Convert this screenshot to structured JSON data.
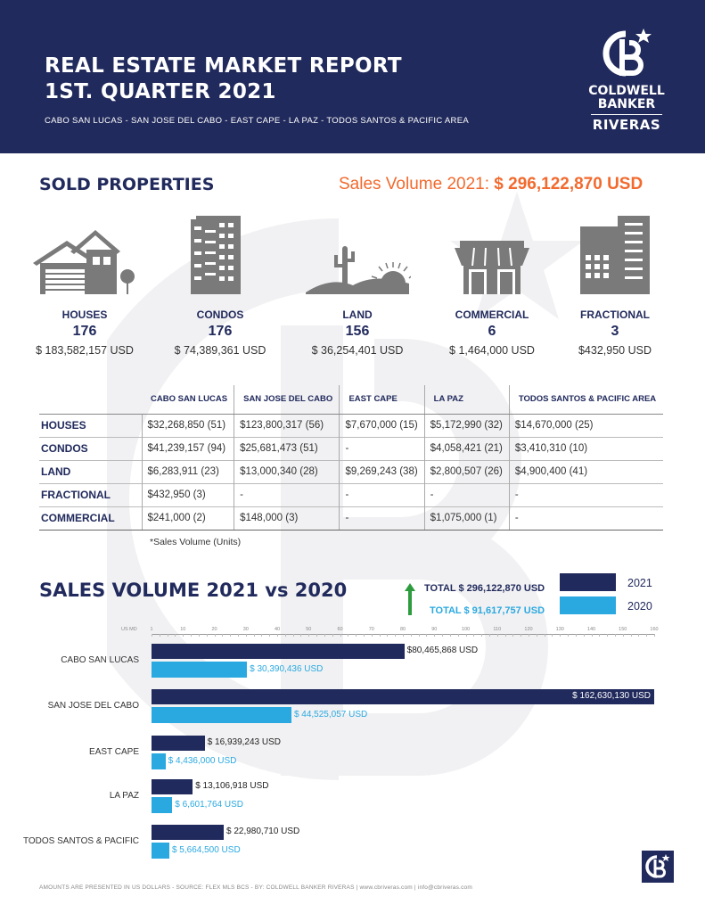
{
  "header": {
    "title_line1": "REAL ESTATE MARKET REPORT",
    "title_line2": "1ST. QUARTER 2021",
    "subtitle": "CABO SAN LUCAS - SAN JOSE DEL CABO - EAST CAPE - LA PAZ - TODOS SANTOS & PACIFIC AREA"
  },
  "logo": {
    "line1": "COLDWELL",
    "line2": "BANKER",
    "line3": "RIVERAS"
  },
  "sold": {
    "title": "SOLD PROPERTIES",
    "sales_volume_label": "Sales Volume 2021: ",
    "sales_volume_value": "$ 296,122,870 USD",
    "categories": [
      {
        "name": "HOUSES",
        "count": "176",
        "amount": "$ 183,582,157 USD",
        "icon": "house-icon"
      },
      {
        "name": "CONDOS",
        "count": "176",
        "amount": "$ 74,389,361  USD",
        "icon": "condo-building-icon"
      },
      {
        "name": "LAND",
        "count": "156",
        "amount": "$ 36,254,401 USD",
        "icon": "desert-land-icon"
      },
      {
        "name": "COMMERCIAL",
        "count": "6",
        "amount": "$ 1,464,000 USD",
        "icon": "storefront-icon"
      },
      {
        "name": "FRACTIONAL",
        "count": "3",
        "amount": "$432,950 USD",
        "icon": "tower-building-icon"
      }
    ]
  },
  "table": {
    "headers": [
      "CABO SAN LUCAS",
      "SAN JOSE DEL CABO",
      "EAST CAPE",
      "LA PAZ",
      "TODOS SANTOS & PACIFIC AREA"
    ],
    "rows": [
      {
        "label": "HOUSES",
        "cells": [
          "$32,268,850 (51)",
          "$123,800,317 (56)",
          "$7,670,000 (15)",
          "$5,172,990 (32)",
          "$14,670,000 (25)"
        ]
      },
      {
        "label": "CONDOS",
        "cells": [
          "$41,239,157 (94)",
          "$25,681,473 (51)",
          "-",
          "$4,058,421 (21)",
          "$3,410,310 (10)"
        ]
      },
      {
        "label": "LAND",
        "cells": [
          "$6,283,911 (23)",
          "$13,000,340 (28)",
          "$9,269,243 (38)",
          "$2,800,507 (26)",
          "$4,900,400 (41)"
        ]
      },
      {
        "label": "FRACTIONAL",
        "cells": [
          "$432,950 (3)",
          "-",
          "-",
          "-",
          "-"
        ]
      },
      {
        "label": "COMMERCIAL",
        "cells": [
          "$241,000 (2)",
          "$148,000 (3)",
          "-",
          "$1,075,000 (1)",
          "-"
        ]
      }
    ],
    "note": "*Sales Volume (Units)"
  },
  "comparison": {
    "title": "SALES VOLUME 2021 vs 2020",
    "total_2021": "TOTAL $ 296,122,870 USD",
    "total_2020": "TOTAL $ 91,617,757 USD",
    "legend_2021": "2021",
    "legend_2020": "2020",
    "color_2021": "#212a5c",
    "color_2020": "#2aa9e0"
  },
  "chart_data": {
    "type": "bar",
    "orientation": "horizontal",
    "title": "SALES VOLUME 2021 vs 2020",
    "xlabel": "US MD",
    "xlim": [
      0,
      160
    ],
    "xticks": [
      "1",
      "10",
      "20",
      "30",
      "40",
      "50",
      "60",
      "70",
      "80",
      "90",
      "100",
      "110",
      "120",
      "130",
      "140",
      "150",
      "160"
    ],
    "categories": [
      "CABO SAN LUCAS",
      "SAN JOSE DEL CABO",
      "EAST CAPE",
      "LA PAZ",
      "TODOS SANTOS & PACIFIC"
    ],
    "series": [
      {
        "name": "2021",
        "values": [
          80.465868,
          162.63013,
          16.939243,
          13.106918,
          22.98071
        ],
        "labels": [
          "$80,465,868 USD",
          "$ 162,630,130 USD",
          "$ 16,939,243 USD",
          "$ 13,106,918 USD",
          "$ 22,980,710 USD"
        ]
      },
      {
        "name": "2020",
        "values": [
          30.390436,
          44.525057,
          4.436,
          6.601764,
          5.6645
        ],
        "labels": [
          "$ 30,390,436 USD",
          "$ 44,525,057 USD",
          "$ 4,436,000 USD",
          "$ 6,601,764 USD",
          "$ 5,664,500 USD"
        ]
      }
    ]
  },
  "footer": {
    "text": "AMOUNTS ARE PRESENTED IN US DOLLARS - SOURCE: FLEX MLS BCS - BY: COLDWELL BANKER RIVERAS | www.cbriveras.com  |  info@cbriveras.com"
  }
}
